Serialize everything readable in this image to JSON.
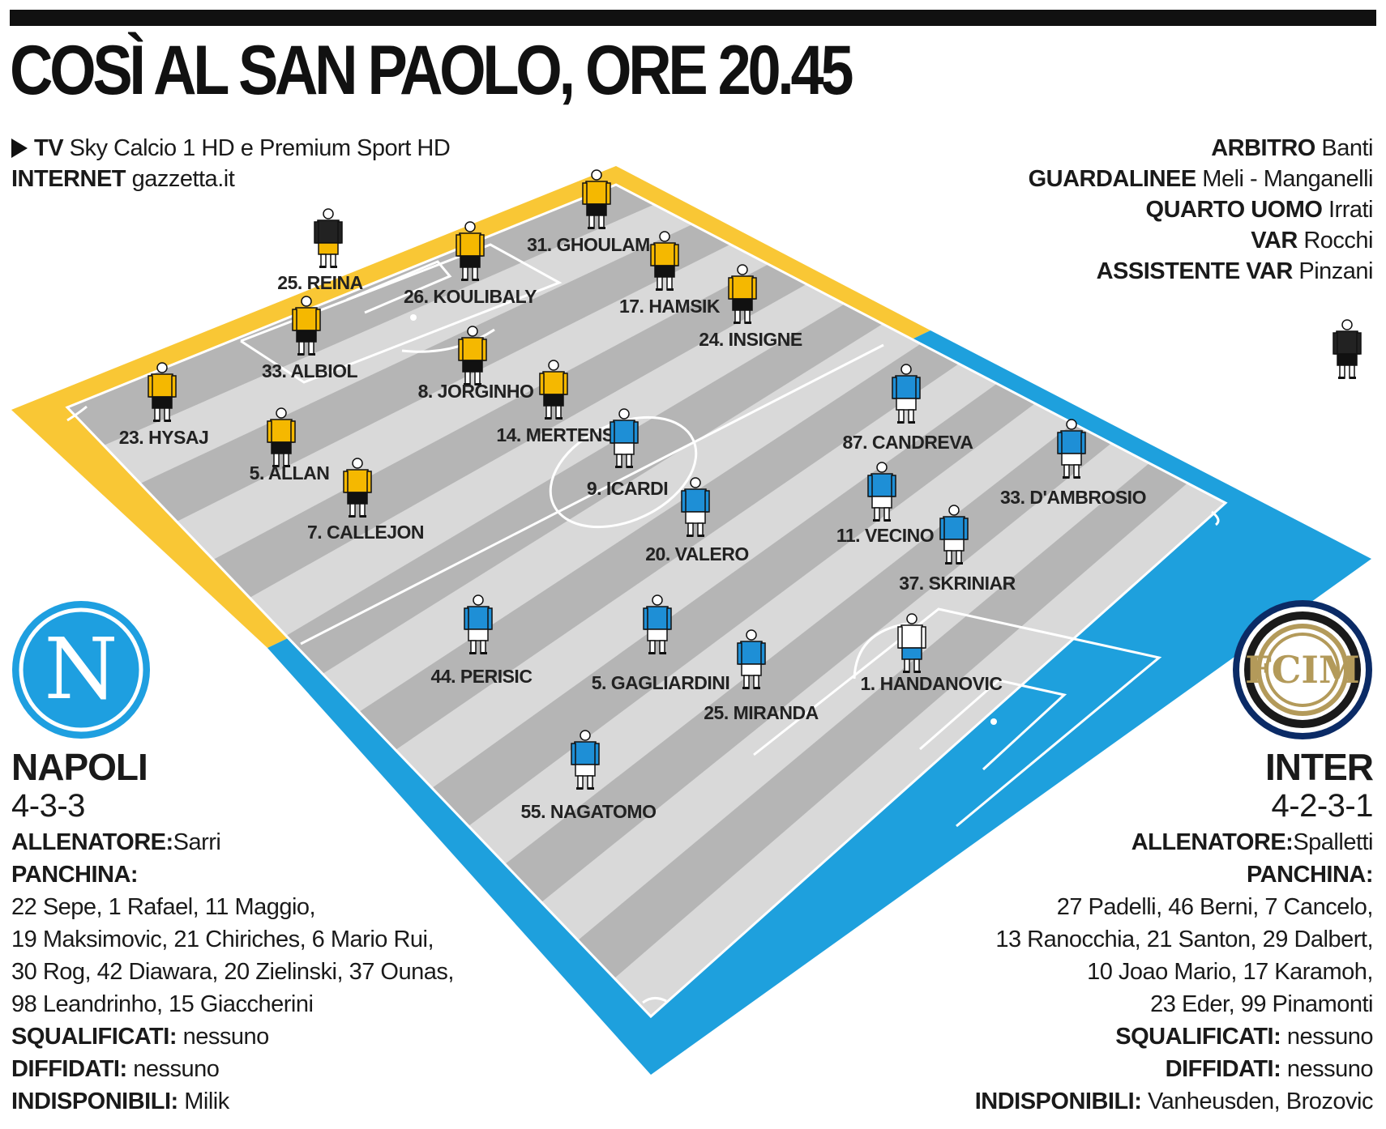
{
  "title": "COSÌ AL SAN PAOLO, ORE 20.45",
  "broadcast": {
    "tv_label": "TV",
    "tv_value": "Sky Calcio 1 HD e Premium Sport HD",
    "internet_label": "INTERNET",
    "internet_value": "gazzetta.it"
  },
  "officials": {
    "arbitro_label": "ARBITRO",
    "arbitro": "Banti",
    "guardalinee_label": "GUARDALINEE",
    "guardalinee": "Meli - Manganelli",
    "quarto_label": "QUARTO UOMO",
    "quarto": "Irrati",
    "var_label": "VAR",
    "var": "Rocchi",
    "assistente_var_label": "ASSISTENTE VAR",
    "assistente_var": "Pinzani"
  },
  "colors": {
    "napoli_band": "#f9c735",
    "inter_band": "#1ea0dd",
    "pitch_light": "#d9d9d9",
    "pitch_dark": "#b5b5b5",
    "napoli_kit": "#f5b800",
    "inter_kit": "#1e8fd6",
    "napoli_crest": "#1e9fe0",
    "inter_gold": "#b39a5a"
  },
  "napoli": {
    "name": "NAPOLI",
    "formation": "4-3-3",
    "coach_label": "ALLENATORE:",
    "coach": "Sarri",
    "bench_label": "PANCHINA:",
    "bench_lines": [
      "22 Sepe, 1 Rafael, 11 Maggio,",
      "19 Maksimovic, 21 Chiriches, 6 Mario Rui,",
      "30 Rog, 42 Diawara, 20 Zielinski, 37 Ounas,",
      "98 Leandrinho, 15 Giaccherini"
    ],
    "suspended_label": "SQUALIFICATI:",
    "suspended": "nessuno",
    "warned_label": "DIFFIDATI:",
    "warned": "nessuno",
    "unavailable_label": "INDISPONIBILI:",
    "unavailable": "Milik",
    "crest_letter": "N",
    "players": [
      {
        "label": "25. REINA",
        "gk": true
      },
      {
        "label": "26. KOULIBALY"
      },
      {
        "label": "31. GHOULAM"
      },
      {
        "label": "33. ALBIOL"
      },
      {
        "label": "23. HYSAJ"
      },
      {
        "label": "8. JORGINHO"
      },
      {
        "label": "17. HAMSIK"
      },
      {
        "label": "5. ALLAN"
      },
      {
        "label": "24. INSIGNE"
      },
      {
        "label": "14. MERTENS"
      },
      {
        "label": "7. CALLEJON"
      }
    ]
  },
  "inter": {
    "name": "INTER",
    "formation": "4-2-3-1",
    "coach_label": "ALLENATORE:",
    "coach": "Spalletti",
    "bench_label": "PANCHINA:",
    "bench_lines": [
      "27 Padelli, 46 Berni, 7 Cancelo,",
      "13 Ranocchia, 21 Santon, 29 Dalbert,",
      "10 Joao Mario, 17 Karamoh,",
      "23 Eder, 99 Pinamonti"
    ],
    "suspended_label": "SQUALIFICATI:",
    "suspended": "nessuno",
    "warned_label": "DIFFIDATI:",
    "warned": "nessuno",
    "unavailable_label": "INDISPONIBILI:",
    "unavailable": "Vanheusden, Brozovic",
    "crest_letters": "FCIM",
    "players": [
      {
        "label": "1. HANDANOVIC",
        "gk": true
      },
      {
        "label": "37. SKRINIAR"
      },
      {
        "label": "25. MIRANDA"
      },
      {
        "label": "33. D'AMBROSIO"
      },
      {
        "label": "55. NAGATOMO"
      },
      {
        "label": "11. VECINO"
      },
      {
        "label": "5. GAGLIARDINI"
      },
      {
        "label": "87. CANDREVA"
      },
      {
        "label": "20. VALERO"
      },
      {
        "label": "44. PERISIC"
      },
      {
        "label": "9. ICARDI"
      }
    ]
  }
}
